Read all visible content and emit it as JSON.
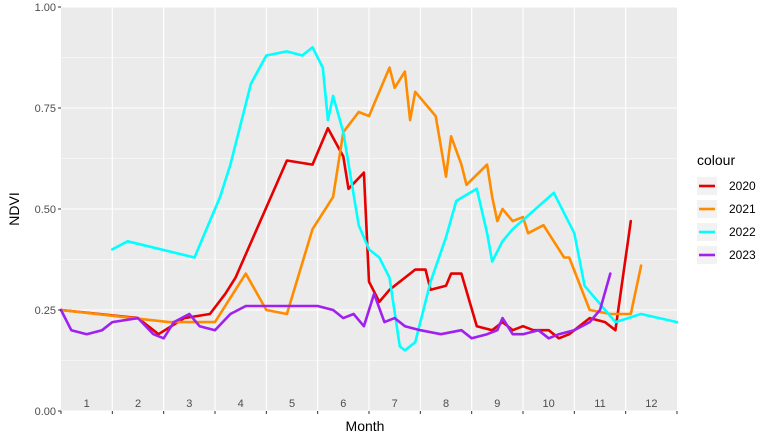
{
  "chart_data": {
    "type": "line",
    "xlabel": "Month",
    "ylabel": "NDVI",
    "xlim": [
      0,
      12
    ],
    "ylim": [
      0,
      1
    ],
    "x_tick_labels": [
      "1",
      "2",
      "3",
      "4",
      "5",
      "6",
      "7",
      "8",
      "9",
      "10",
      "11",
      "12"
    ],
    "y_ticks": [
      0.0,
      0.25,
      0.5,
      0.75,
      1.0
    ],
    "y_tick_labels": [
      "0.00",
      "0.25",
      "0.50",
      "0.75",
      "1.00"
    ],
    "grid": true,
    "legend": {
      "title": "colour",
      "position": "right"
    },
    "series": [
      {
        "name": "2020",
        "color": "#e60000",
        "points": [
          [
            0,
            0.25
          ],
          [
            1.5,
            0.23
          ],
          [
            1.9,
            0.19
          ],
          [
            2.4,
            0.23
          ],
          [
            2.9,
            0.24
          ],
          [
            3.2,
            0.29
          ],
          [
            3.4,
            0.33
          ],
          [
            4.4,
            0.62
          ],
          [
            4.9,
            0.61
          ],
          [
            5.2,
            0.7
          ],
          [
            5.5,
            0.63
          ],
          [
            5.6,
            0.55
          ],
          [
            5.9,
            0.59
          ],
          [
            6.0,
            0.32
          ],
          [
            6.2,
            0.27
          ],
          [
            6.4,
            0.3
          ],
          [
            6.9,
            0.35
          ],
          [
            7.1,
            0.35
          ],
          [
            7.2,
            0.3
          ],
          [
            7.5,
            0.31
          ],
          [
            7.6,
            0.34
          ],
          [
            7.8,
            0.34
          ],
          [
            8.1,
            0.21
          ],
          [
            8.4,
            0.2
          ],
          [
            8.6,
            0.22
          ],
          [
            8.8,
            0.2
          ],
          [
            9.0,
            0.21
          ],
          [
            9.2,
            0.2
          ],
          [
            9.5,
            0.2
          ],
          [
            9.7,
            0.18
          ],
          [
            9.9,
            0.19
          ],
          [
            10.3,
            0.23
          ],
          [
            10.6,
            0.22
          ],
          [
            10.8,
            0.2
          ],
          [
            11.1,
            0.47
          ]
        ]
      },
      {
        "name": "2021",
        "color": "#ff8c00",
        "points": [
          [
            0,
            0.25
          ],
          [
            2.1,
            0.22
          ],
          [
            3.0,
            0.22
          ],
          [
            3.6,
            0.34
          ],
          [
            4.0,
            0.25
          ],
          [
            4.4,
            0.24
          ],
          [
            4.9,
            0.45
          ],
          [
            5.3,
            0.53
          ],
          [
            5.5,
            0.69
          ],
          [
            5.8,
            0.74
          ],
          [
            6.0,
            0.73
          ],
          [
            6.4,
            0.85
          ],
          [
            6.5,
            0.8
          ],
          [
            6.7,
            0.84
          ],
          [
            6.8,
            0.72
          ],
          [
            6.9,
            0.79
          ],
          [
            7.3,
            0.73
          ],
          [
            7.5,
            0.58
          ],
          [
            7.6,
            0.68
          ],
          [
            7.8,
            0.61
          ],
          [
            7.9,
            0.56
          ],
          [
            8.3,
            0.61
          ],
          [
            8.4,
            0.53
          ],
          [
            8.5,
            0.47
          ],
          [
            8.6,
            0.5
          ],
          [
            8.8,
            0.47
          ],
          [
            9.0,
            0.48
          ],
          [
            9.1,
            0.44
          ],
          [
            9.4,
            0.46
          ],
          [
            9.8,
            0.38
          ],
          [
            9.9,
            0.38
          ],
          [
            10.3,
            0.25
          ],
          [
            10.7,
            0.24
          ],
          [
            11.1,
            0.24
          ],
          [
            11.3,
            0.36
          ]
        ]
      },
      {
        "name": "2022",
        "color": "#00ffff",
        "points": [
          [
            1.0,
            0.4
          ],
          [
            1.3,
            0.42
          ],
          [
            2.6,
            0.38
          ],
          [
            3.1,
            0.53
          ],
          [
            3.3,
            0.61
          ],
          [
            3.7,
            0.81
          ],
          [
            4.0,
            0.88
          ],
          [
            4.4,
            0.89
          ],
          [
            4.7,
            0.88
          ],
          [
            4.9,
            0.9
          ],
          [
            5.1,
            0.85
          ],
          [
            5.2,
            0.72
          ],
          [
            5.3,
            0.78
          ],
          [
            5.5,
            0.69
          ],
          [
            5.8,
            0.46
          ],
          [
            6.0,
            0.4
          ],
          [
            6.2,
            0.38
          ],
          [
            6.4,
            0.33
          ],
          [
            6.6,
            0.16
          ],
          [
            6.7,
            0.15
          ],
          [
            6.9,
            0.17
          ],
          [
            7.2,
            0.32
          ],
          [
            7.5,
            0.43
          ],
          [
            7.7,
            0.52
          ],
          [
            8.1,
            0.55
          ],
          [
            8.3,
            0.44
          ],
          [
            8.4,
            0.37
          ],
          [
            8.6,
            0.42
          ],
          [
            8.8,
            0.45
          ],
          [
            9.6,
            0.54
          ],
          [
            10.0,
            0.44
          ],
          [
            10.2,
            0.31
          ],
          [
            10.8,
            0.22
          ],
          [
            11.3,
            0.24
          ],
          [
            12.0,
            0.22
          ]
        ]
      },
      {
        "name": "2023",
        "color": "#a020f0",
        "points": [
          [
            0,
            0.25
          ],
          [
            0.2,
            0.2
          ],
          [
            0.5,
            0.19
          ],
          [
            0.8,
            0.2
          ],
          [
            1.0,
            0.22
          ],
          [
            1.5,
            0.23
          ],
          [
            1.8,
            0.19
          ],
          [
            2.0,
            0.18
          ],
          [
            2.2,
            0.22
          ],
          [
            2.5,
            0.24
          ],
          [
            2.7,
            0.21
          ],
          [
            3.0,
            0.2
          ],
          [
            3.3,
            0.24
          ],
          [
            3.6,
            0.26
          ],
          [
            4.0,
            0.26
          ],
          [
            4.5,
            0.26
          ],
          [
            5.0,
            0.26
          ],
          [
            5.3,
            0.25
          ],
          [
            5.5,
            0.23
          ],
          [
            5.7,
            0.24
          ],
          [
            5.9,
            0.21
          ],
          [
            6.1,
            0.29
          ],
          [
            6.3,
            0.22
          ],
          [
            6.5,
            0.23
          ],
          [
            6.7,
            0.21
          ],
          [
            7.0,
            0.2
          ],
          [
            7.4,
            0.19
          ],
          [
            7.8,
            0.2
          ],
          [
            8.0,
            0.18
          ],
          [
            8.3,
            0.19
          ],
          [
            8.5,
            0.2
          ],
          [
            8.6,
            0.23
          ],
          [
            8.8,
            0.19
          ],
          [
            9.0,
            0.19
          ],
          [
            9.3,
            0.2
          ],
          [
            9.5,
            0.18
          ],
          [
            9.7,
            0.19
          ],
          [
            10.0,
            0.2
          ],
          [
            10.3,
            0.22
          ],
          [
            10.5,
            0.25
          ],
          [
            10.7,
            0.34
          ]
        ]
      }
    ]
  }
}
